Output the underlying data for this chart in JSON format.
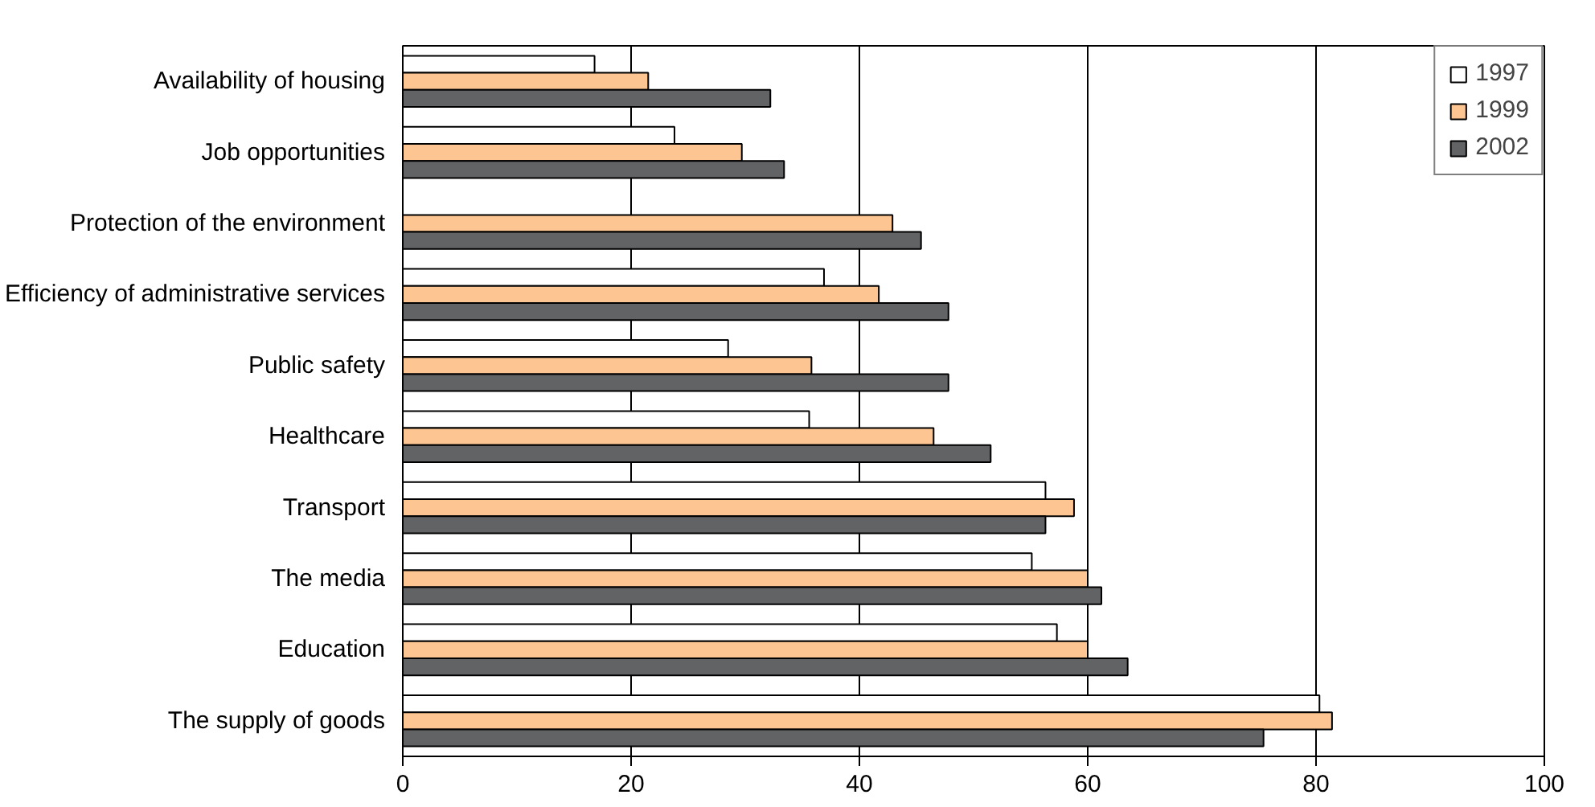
{
  "chart_data": {
    "type": "bar",
    "orientation": "horizontal",
    "categories": [
      "Availability of housing",
      "Job opportunities",
      "Protection of the environment",
      "Efficiency of administrative services",
      "Public safety",
      "Healthcare",
      "Transport",
      "The media",
      "Education",
      "The supply of goods"
    ],
    "series": [
      {
        "name": "1997",
        "color": "#ffffff",
        "values": [
          16.8,
          23.8,
          null,
          36.9,
          28.5,
          35.6,
          56.3,
          55.1,
          57.3,
          80.3
        ]
      },
      {
        "name": "1999",
        "color": "#fdc591",
        "values": [
          21.5,
          29.7,
          42.9,
          41.7,
          35.8,
          46.5,
          58.8,
          60,
          60,
          81.4
        ]
      },
      {
        "name": "2002",
        "color": "#626365",
        "values": [
          32.2,
          33.4,
          45.4,
          47.8,
          47.8,
          51.5,
          56.3,
          61.2,
          63.5,
          75.4
        ]
      }
    ],
    "xlim": [
      0,
      100
    ],
    "xticks": [
      0,
      20,
      40,
      60,
      80,
      100
    ],
    "grid": "x",
    "legend": "top right"
  }
}
